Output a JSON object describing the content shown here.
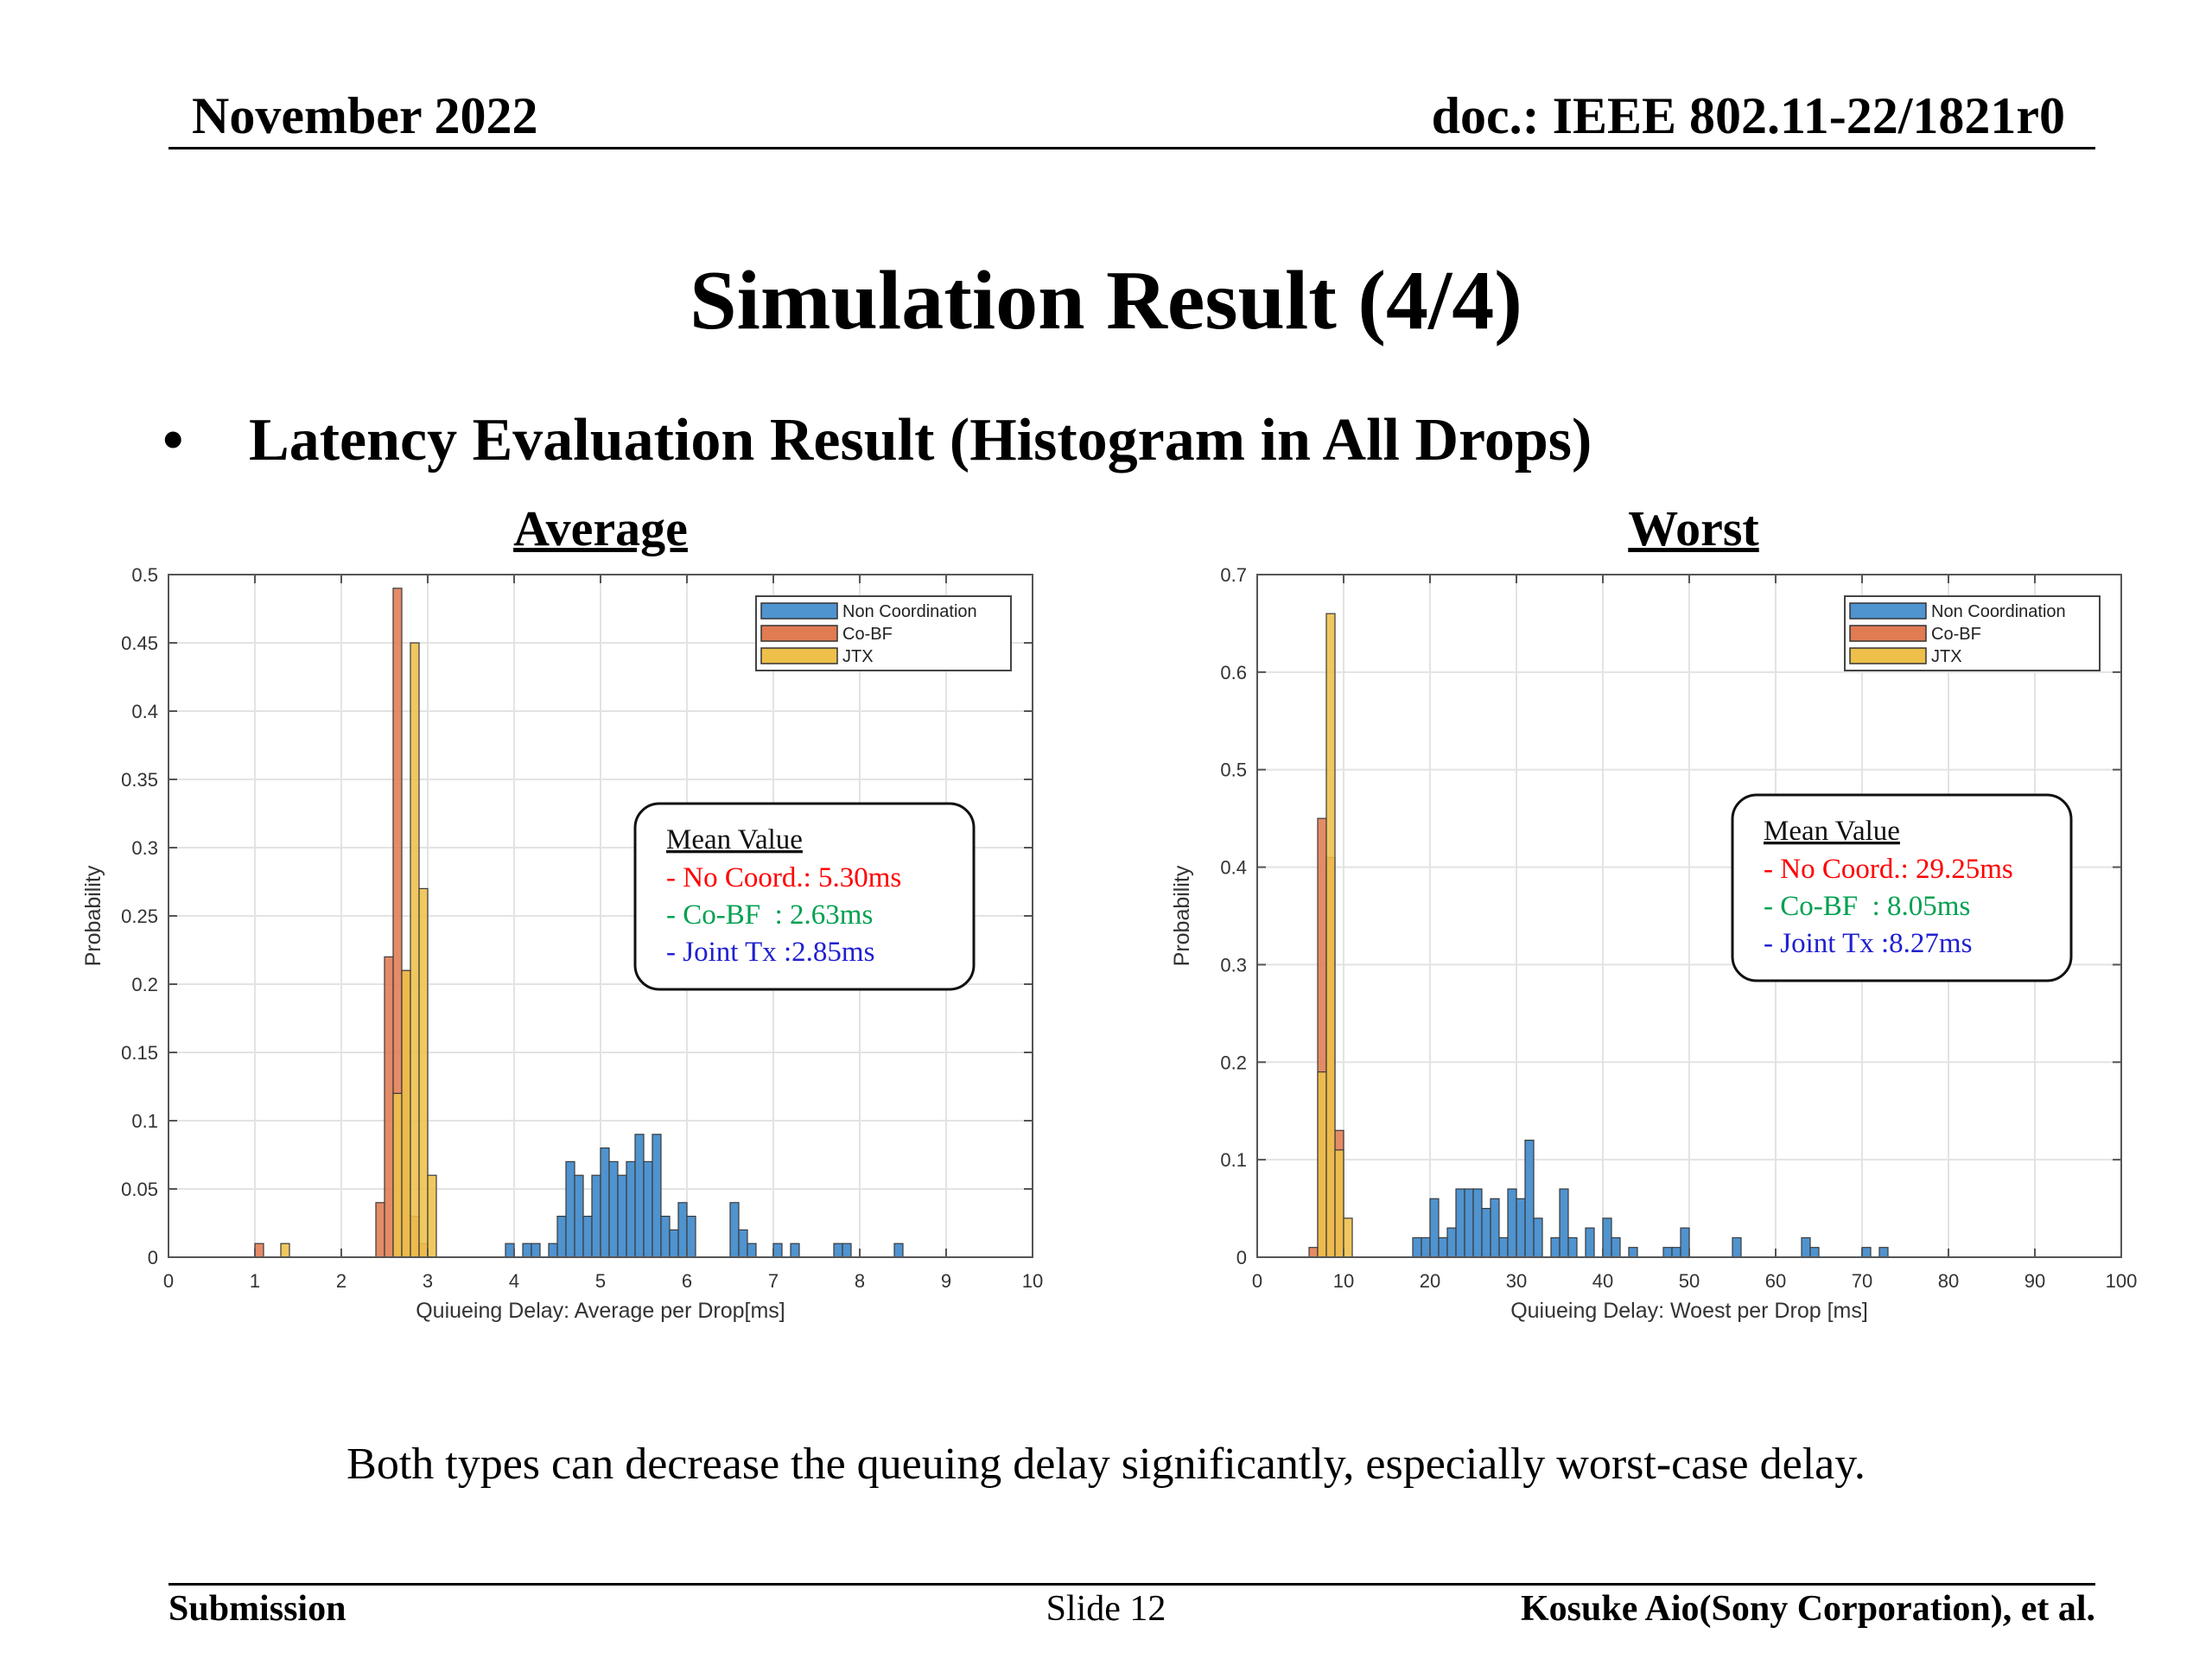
{
  "header": {
    "date": "November 2022",
    "doc": "doc.: IEEE 802.11-22/1821r0"
  },
  "title": "Simulation Result (4/4)",
  "bullet": {
    "symbol": "•",
    "text": "Latency Evaluation Result (Histogram in All Drops)"
  },
  "colors": {
    "non_coordination": "#4f93cf",
    "co_bf": "#e07b52",
    "jtx": "#eec04a",
    "no_coord_text": "#ff0000",
    "co_bf_text": "#00a050",
    "joint_tx_text": "#2020d0"
  },
  "chart_data": [
    {
      "type": "bar",
      "title": "Average",
      "xlabel": "Quiueing Delay: Average per Drop[ms]",
      "ylabel": "Probability",
      "xlim": [
        0,
        10
      ],
      "ylim": [
        0,
        0.5
      ],
      "xticks": [
        "0",
        "1",
        "2",
        "3",
        "4",
        "5",
        "6",
        "7",
        "8",
        "9",
        "10"
      ],
      "yticks": [
        "0",
        "0.05",
        "0.1",
        "0.15",
        "0.2",
        "0.25",
        "0.3",
        "0.35",
        "0.4",
        "0.45",
        "0.5"
      ],
      "bin_width": 0.1,
      "grid": true,
      "legend_position": "top-right",
      "series": [
        {
          "name": "Non Coordination",
          "bars": [
            {
              "x": 3.95,
              "y": 0.01
            },
            {
              "x": 4.15,
              "y": 0.01
            },
            {
              "x": 4.25,
              "y": 0.01
            },
            {
              "x": 4.45,
              "y": 0.01
            },
            {
              "x": 4.55,
              "y": 0.03
            },
            {
              "x": 4.65,
              "y": 0.07
            },
            {
              "x": 4.75,
              "y": 0.06
            },
            {
              "x": 4.85,
              "y": 0.03
            },
            {
              "x": 4.95,
              "y": 0.06
            },
            {
              "x": 5.05,
              "y": 0.08
            },
            {
              "x": 5.15,
              "y": 0.07
            },
            {
              "x": 5.25,
              "y": 0.06
            },
            {
              "x": 5.35,
              "y": 0.07
            },
            {
              "x": 5.45,
              "y": 0.09
            },
            {
              "x": 5.55,
              "y": 0.07
            },
            {
              "x": 5.65,
              "y": 0.09
            },
            {
              "x": 5.75,
              "y": 0.03
            },
            {
              "x": 5.85,
              "y": 0.02
            },
            {
              "x": 5.95,
              "y": 0.04
            },
            {
              "x": 6.05,
              "y": 0.03
            },
            {
              "x": 6.55,
              "y": 0.04
            },
            {
              "x": 6.65,
              "y": 0.02
            },
            {
              "x": 6.75,
              "y": 0.01
            },
            {
              "x": 7.05,
              "y": 0.01
            },
            {
              "x": 7.25,
              "y": 0.01
            },
            {
              "x": 7.75,
              "y": 0.01
            },
            {
              "x": 7.85,
              "y": 0.01
            },
            {
              "x": 8.45,
              "y": 0.01
            }
          ]
        },
        {
          "name": "Co-BF",
          "bars": [
            {
              "x": 1.05,
              "y": 0.01
            },
            {
              "x": 2.45,
              "y": 0.04
            },
            {
              "x": 2.55,
              "y": 0.22
            },
            {
              "x": 2.65,
              "y": 0.49
            },
            {
              "x": 2.75,
              "y": 0.21
            },
            {
              "x": 2.85,
              "y": 0.03
            },
            {
              "x": 2.95,
              "y": 0.01
            }
          ]
        },
        {
          "name": "JTX",
          "bars": [
            {
              "x": 1.35,
              "y": 0.01
            },
            {
              "x": 2.65,
              "y": 0.12
            },
            {
              "x": 2.75,
              "y": 0.21
            },
            {
              "x": 2.85,
              "y": 0.45
            },
            {
              "x": 2.95,
              "y": 0.27
            },
            {
              "x": 3.05,
              "y": 0.06
            }
          ]
        }
      ],
      "annotation": {
        "heading": "Mean Value",
        "lines": [
          "- No Coord.: 5.30ms",
          "- Co-BF  : 2.63ms",
          "- Joint Tx :2.85ms"
        ]
      }
    },
    {
      "type": "bar",
      "title": "Worst",
      "xlabel": "Quiueing Delay: Woest per Drop [ms]",
      "ylabel": "Probability",
      "xlim": [
        0,
        100
      ],
      "ylim": [
        0,
        0.7
      ],
      "xticks": [
        "0",
        "10",
        "20",
        "30",
        "40",
        "50",
        "60",
        "70",
        "80",
        "90",
        "100"
      ],
      "yticks": [
        "0",
        "0.1",
        "0.2",
        "0.3",
        "0.4",
        "0.5",
        "0.6",
        "0.7"
      ],
      "bin_width": 1,
      "grid": true,
      "legend_position": "top-right",
      "series": [
        {
          "name": "Non Coordination",
          "bars": [
            {
              "x": 18.5,
              "y": 0.02
            },
            {
              "x": 19.5,
              "y": 0.02
            },
            {
              "x": 20.5,
              "y": 0.06
            },
            {
              "x": 21.5,
              "y": 0.02
            },
            {
              "x": 22.5,
              "y": 0.03
            },
            {
              "x": 23.5,
              "y": 0.07
            },
            {
              "x": 24.5,
              "y": 0.07
            },
            {
              "x": 25.5,
              "y": 0.07
            },
            {
              "x": 26.5,
              "y": 0.05
            },
            {
              "x": 27.5,
              "y": 0.06
            },
            {
              "x": 28.5,
              "y": 0.02
            },
            {
              "x": 29.5,
              "y": 0.07
            },
            {
              "x": 30.5,
              "y": 0.06
            },
            {
              "x": 31.5,
              "y": 0.12
            },
            {
              "x": 32.5,
              "y": 0.04
            },
            {
              "x": 34.5,
              "y": 0.02
            },
            {
              "x": 35.5,
              "y": 0.07
            },
            {
              "x": 36.5,
              "y": 0.02
            },
            {
              "x": 38.5,
              "y": 0.03
            },
            {
              "x": 40.5,
              "y": 0.04
            },
            {
              "x": 41.5,
              "y": 0.02
            },
            {
              "x": 43.5,
              "y": 0.01
            },
            {
              "x": 47.5,
              "y": 0.01
            },
            {
              "x": 48.5,
              "y": 0.01
            },
            {
              "x": 49.5,
              "y": 0.03
            },
            {
              "x": 55.5,
              "y": 0.02
            },
            {
              "x": 63.5,
              "y": 0.02
            },
            {
              "x": 64.5,
              "y": 0.01
            },
            {
              "x": 70.5,
              "y": 0.01
            },
            {
              "x": 72.5,
              "y": 0.01
            }
          ]
        },
        {
          "name": "Co-BF",
          "bars": [
            {
              "x": 6.5,
              "y": 0.01
            },
            {
              "x": 7.5,
              "y": 0.45
            },
            {
              "x": 8.5,
              "y": 0.41
            },
            {
              "x": 9.5,
              "y": 0.13
            }
          ]
        },
        {
          "name": "JTX",
          "bars": [
            {
              "x": 7.5,
              "y": 0.19
            },
            {
              "x": 8.5,
              "y": 0.66
            },
            {
              "x": 9.5,
              "y": 0.11
            },
            {
              "x": 10.5,
              "y": 0.04
            }
          ]
        }
      ],
      "annotation": {
        "heading": "Mean Value",
        "lines": [
          "- No Coord.: 29.25ms",
          "- Co-BF  : 8.05ms",
          "- Joint Tx :8.27ms"
        ]
      }
    }
  ],
  "conclusion": "Both types can decrease the queuing delay significantly, especially worst-case delay.",
  "footer": {
    "left": "Submission",
    "center": "Slide 12",
    "right": "Kosuke Aio(Sony Corporation), et al."
  }
}
